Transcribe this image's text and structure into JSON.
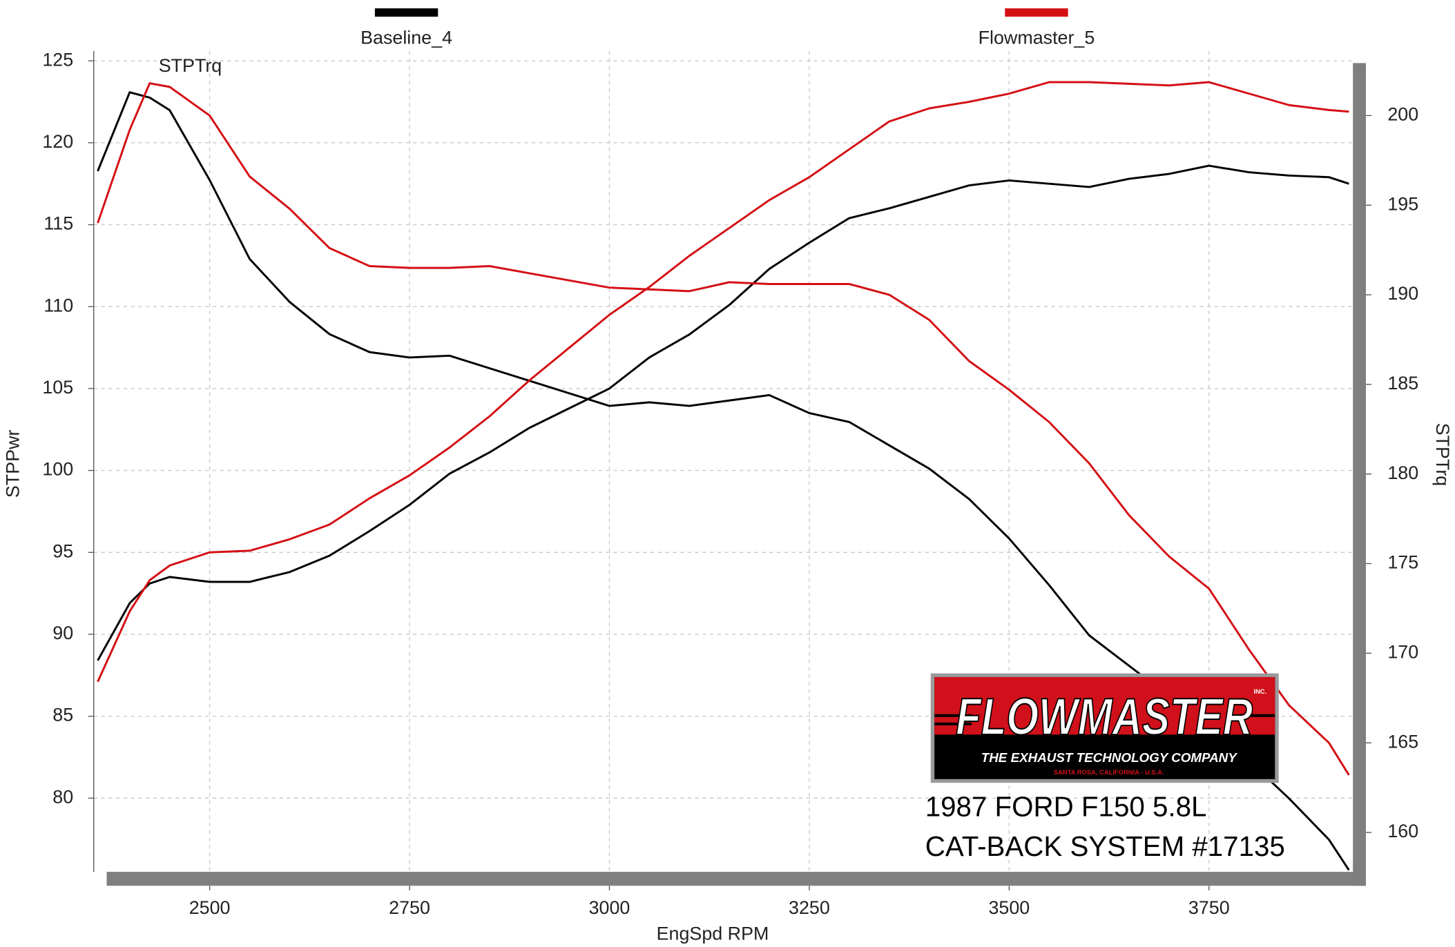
{
  "chart_data": {
    "type": "line",
    "xlabel": "EngSpd  RPM",
    "ylabel": "STPPwr",
    "y2label": "STPTrq",
    "annotation": "STPTrq",
    "x": [
      2360,
      2400,
      2425,
      2450,
      2500,
      2550,
      2600,
      2650,
      2700,
      2750,
      2800,
      2850,
      2900,
      2950,
      3000,
      3050,
      3100,
      3150,
      3200,
      3250,
      3300,
      3350,
      3400,
      3450,
      3500,
      3550,
      3600,
      3650,
      3700,
      3750,
      3800,
      3850,
      3900,
      3925
    ],
    "xlim": [
      2355,
      3930
    ],
    "xticks": [
      2500,
      2750,
      3000,
      3250,
      3500,
      3750
    ],
    "ylim": [
      75.5,
      125.6
    ],
    "yticks": [
      80,
      85,
      90,
      95,
      100,
      105,
      110,
      115,
      120,
      125
    ],
    "y2lim": [
      157.8,
      203.6
    ],
    "y2ticks": [
      160,
      165,
      170,
      175,
      180,
      185,
      190,
      195,
      200
    ],
    "grid": true,
    "legend": "top",
    "series": [
      {
        "name": "Baseline_4",
        "color": "#000000",
        "values": [
          88.4,
          91.9,
          93.1,
          93.5,
          93.2,
          93.2,
          93.8,
          94.8,
          96.3,
          97.9,
          99.8,
          101.1,
          102.6,
          103.8,
          105.0,
          106.9,
          108.3,
          110.1,
          112.3,
          113.9,
          115.4,
          116.0,
          116.7,
          117.4,
          117.7,
          117.5,
          117.3,
          117.8,
          118.1,
          118.6,
          118.2,
          118.0,
          117.9,
          117.5
        ],
        "values_y2": [
          196.9,
          201.3,
          201.0,
          200.3,
          196.4,
          192.0,
          189.6,
          187.8,
          186.8,
          186.5,
          186.6,
          185.9,
          185.2,
          184.5,
          183.8,
          184.0,
          183.8,
          184.1,
          184.4,
          183.4,
          182.9,
          181.6,
          180.3,
          178.6,
          176.4,
          173.8,
          171.0,
          169.3,
          167.6,
          166.2,
          164.0,
          161.9,
          159.6,
          157.9
        ]
      },
      {
        "name": "Flowmaster_5",
        "color": "#d40f14",
        "values": [
          87.1,
          91.4,
          93.3,
          94.2,
          95.0,
          95.1,
          95.8,
          96.7,
          98.3,
          99.7,
          101.4,
          103.3,
          105.5,
          107.5,
          109.5,
          111.2,
          113.1,
          114.8,
          116.5,
          117.9,
          119.6,
          121.3,
          122.1,
          122.5,
          123.0,
          123.7,
          123.7,
          123.6,
          123.5,
          123.7,
          123.0,
          122.3,
          122.0,
          121.9
        ],
        "values_y2": [
          194.0,
          199.2,
          201.8,
          201.6,
          200.0,
          196.6,
          194.8,
          192.6,
          191.6,
          191.5,
          191.5,
          191.6,
          191.2,
          190.8,
          190.4,
          190.3,
          190.2,
          190.7,
          190.6,
          190.6,
          190.6,
          190.0,
          188.6,
          186.3,
          184.7,
          182.9,
          180.6,
          177.7,
          175.4,
          173.6,
          170.2,
          167.1,
          165.0,
          163.2
        ]
      }
    ]
  },
  "logo": {
    "brand": "FLOWMASTER",
    "inc": "INC.",
    "tagline": "THE EXHAUST TECHNOLOGY COMPANY",
    "location": "SANTA ROSA, CALIFORNIA - U.S.A."
  },
  "caption": [
    "1987 FORD F150 5.8L",
    "CAT-BACK SYSTEM #17135"
  ]
}
